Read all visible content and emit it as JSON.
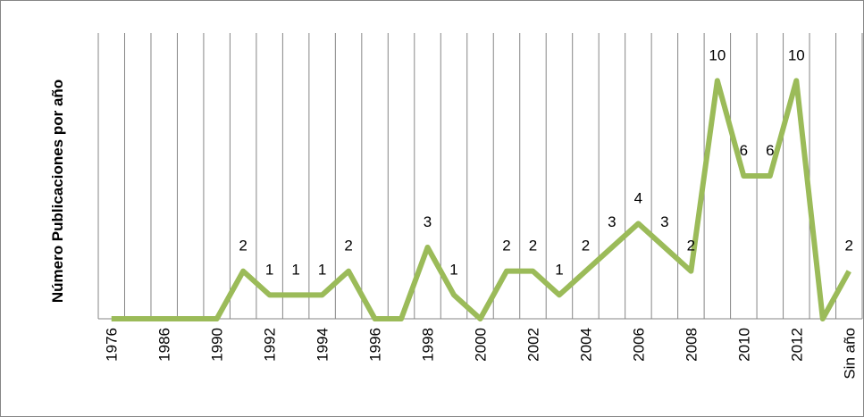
{
  "chart_data": {
    "type": "line",
    "y_label": "Número Publicaciones por año",
    "categories": [
      "1976",
      null,
      "1986",
      null,
      "1990",
      null,
      "1992",
      null,
      "1994",
      null,
      "1996",
      null,
      "1998",
      null,
      "2000",
      null,
      "2002",
      null,
      "2004",
      null,
      "2006",
      null,
      "2008",
      null,
      "2010",
      null,
      "2012",
      null,
      "Sin año"
    ],
    "values": [
      0,
      0,
      0,
      0,
      0,
      2,
      1,
      1,
      1,
      2,
      0,
      0,
      3,
      1,
      0,
      2,
      2,
      1,
      2,
      3,
      4,
      3,
      2,
      10,
      6,
      6,
      10,
      0,
      2
    ],
    "color": "#9bbb59",
    "ylim": [
      0,
      12
    ],
    "data_labels": true,
    "grid": true
  }
}
